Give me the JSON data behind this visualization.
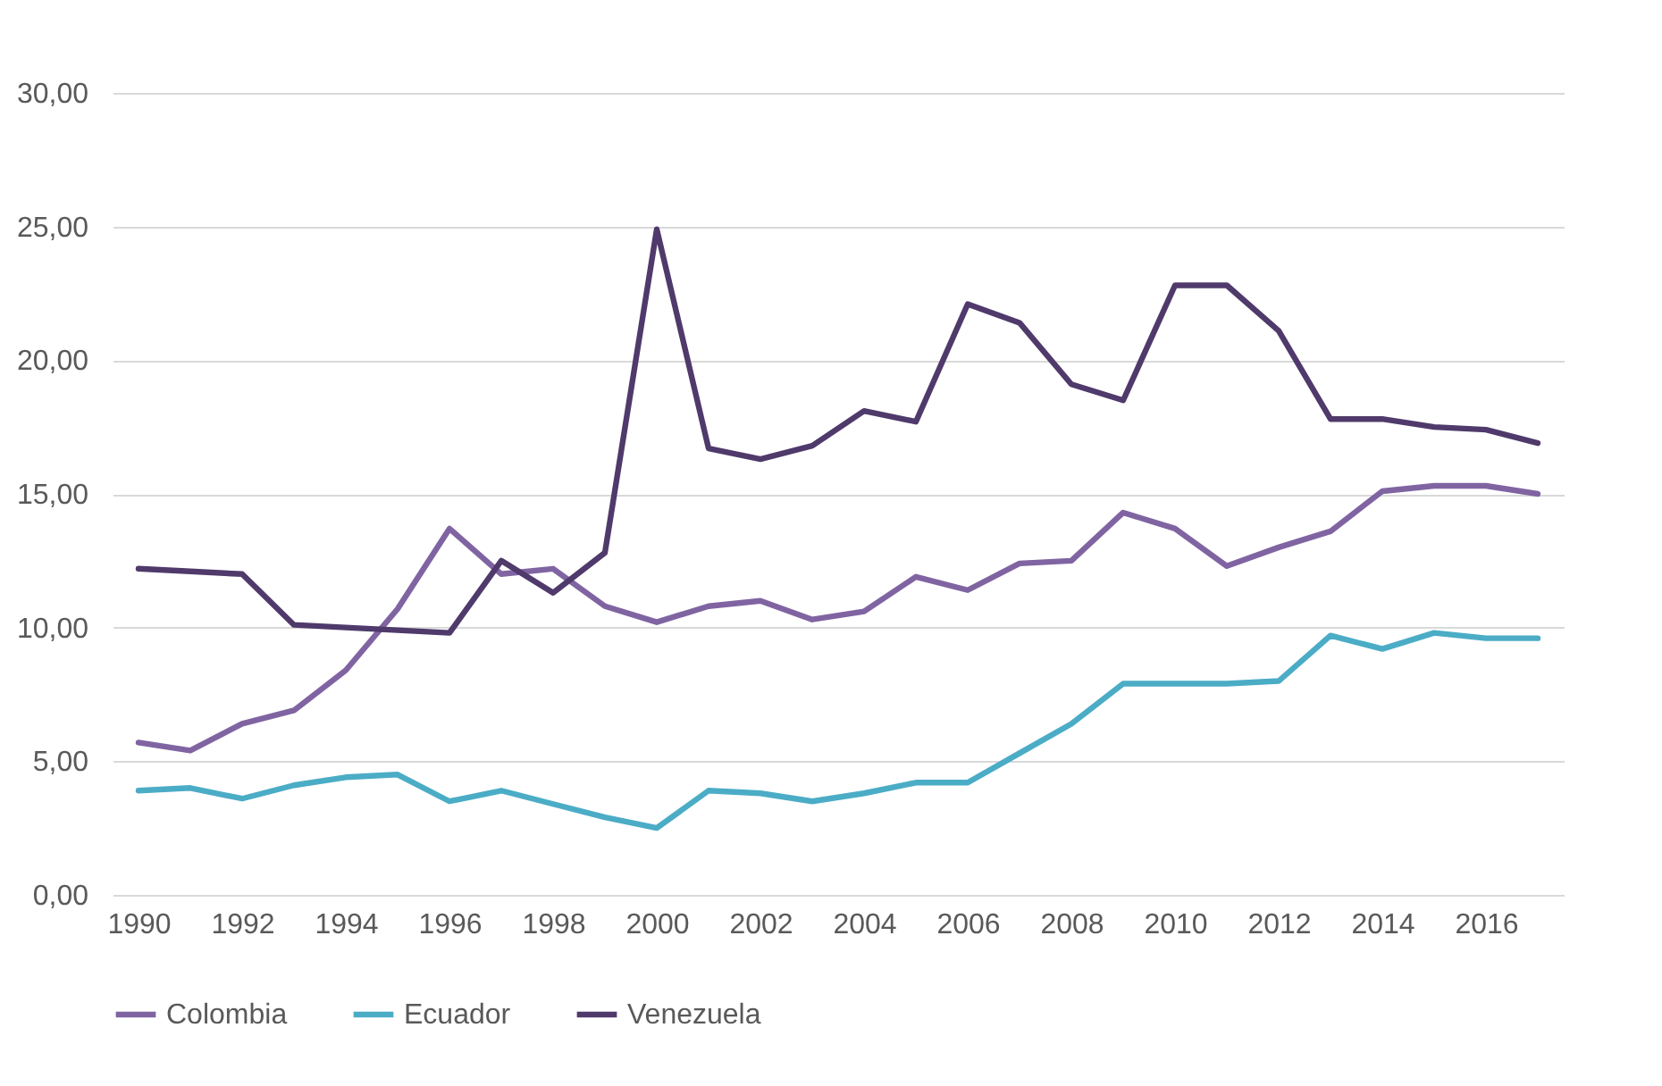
{
  "chart_data": {
    "type": "line",
    "x": [
      1990,
      1991,
      1992,
      1993,
      1994,
      1995,
      1996,
      1997,
      1998,
      1999,
      2000,
      2001,
      2002,
      2003,
      2004,
      2005,
      2006,
      2007,
      2008,
      2009,
      2010,
      2011,
      2012,
      2013,
      2014,
      2015,
      2016,
      2017
    ],
    "series": [
      {
        "name": "Colombia",
        "color": "#8064a2",
        "values": [
          5.7,
          5.4,
          6.4,
          6.9,
          8.4,
          10.7,
          13.7,
          12.0,
          12.2,
          10.8,
          10.2,
          10.8,
          11.0,
          10.3,
          10.6,
          11.9,
          11.4,
          12.4,
          12.5,
          14.3,
          13.7,
          12.3,
          13.0,
          13.6,
          15.1,
          15.3,
          15.3,
          15.0
        ]
      },
      {
        "name": "Ecuador",
        "color": "#4bacc6",
        "values": [
          3.9,
          4.0,
          3.6,
          4.1,
          4.4,
          4.5,
          3.5,
          3.9,
          3.4,
          2.9,
          2.5,
          3.9,
          3.8,
          3.5,
          3.8,
          4.2,
          4.2,
          5.3,
          6.4,
          7.9,
          7.9,
          7.9,
          8.0,
          9.7,
          9.2,
          9.8,
          9.6,
          9.6
        ]
      },
      {
        "name": "Venezuela",
        "color": "#4f3a6b",
        "values": [
          12.2,
          12.1,
          12.0,
          10.1,
          10.0,
          9.9,
          9.8,
          12.5,
          11.3,
          12.8,
          24.9,
          16.7,
          16.3,
          16.8,
          18.1,
          17.7,
          22.1,
          21.4,
          19.1,
          18.5,
          22.8,
          22.8,
          21.1,
          17.8,
          17.8,
          17.5,
          17.4,
          16.9
        ]
      }
    ],
    "xlim": [
      1989.5,
      2017.5
    ],
    "xticks": [
      1990,
      1992,
      1994,
      1996,
      1998,
      2000,
      2002,
      2004,
      2006,
      2008,
      2010,
      2012,
      2014,
      2016
    ],
    "ylim": [
      0,
      30
    ],
    "yticks": [
      {
        "value": 0,
        "label": "0,00"
      },
      {
        "value": 5,
        "label": "5,00"
      },
      {
        "value": 10,
        "label": "10,00"
      },
      {
        "value": 15,
        "label": "15,00"
      },
      {
        "value": 20,
        "label": "20,00"
      },
      {
        "value": 25,
        "label": "25,00"
      },
      {
        "value": 30,
        "label": "30,00"
      }
    ],
    "grid": "y",
    "legend": "bottom",
    "marker": "none",
    "line_style": "solid"
  }
}
